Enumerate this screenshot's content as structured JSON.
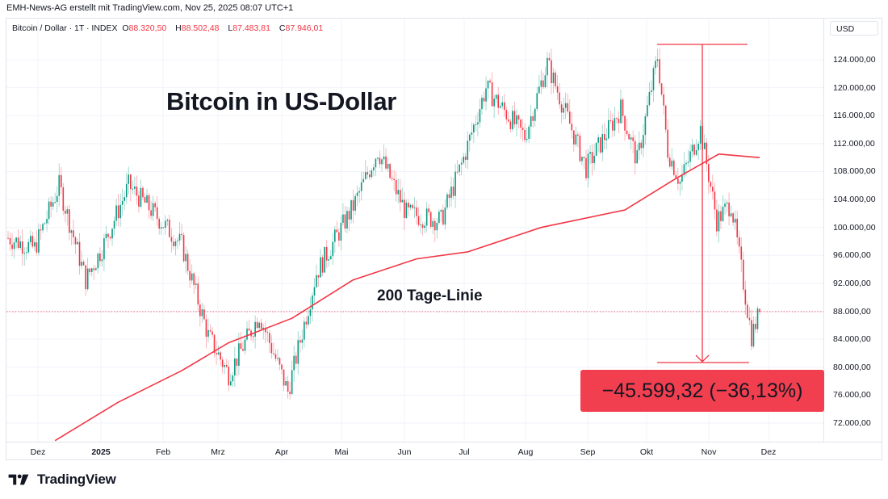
{
  "header": {
    "credit": "EMH-News-AG erstellt mit TradingView.com, Nov 25, 2025 08:07 UTC+1",
    "symbol_label": "Bitcoin / Dollar · 1T · INDEX",
    "ohlc": [
      {
        "key": "O",
        "value": "88.320,50"
      },
      {
        "key": "H",
        "value": "88.502,48"
      },
      {
        "key": "L",
        "value": "87.483,81"
      },
      {
        "key": "C",
        "value": "87.946,01"
      }
    ],
    "currency": "USD"
  },
  "annotations": {
    "title": "Bitcoin in US-Dollar",
    "ma_label": "200 Tage-Linie",
    "difference": "−45.599,32 (−36,13%)"
  },
  "branding": {
    "name": "TradingView",
    "logo_icon": "tradingview-logo-icon"
  },
  "colors": {
    "up": "#089981",
    "down": "#f23645",
    "ma": "#f23645",
    "grid": "#f0f3fa",
    "annotation": "#f23645",
    "box": "#f23f4f"
  },
  "chart_data": {
    "type": "candlestick",
    "title": "Bitcoin in US-Dollar",
    "symbol": "Bitcoin / Dollar · 1T · INDEX",
    "ylabel": "USD",
    "ylim": [
      68000,
      128000
    ],
    "y_ticks": [
      "124.000,00",
      "120.000,00",
      "116.000,00",
      "112.000,00",
      "108.000,00",
      "104.000,00",
      "100.000,00",
      "96.000,00",
      "92.000,00",
      "88.000,00",
      "84.000,00",
      "80.000,00",
      "76.000,00",
      "72.000,00"
    ],
    "x_ticks": [
      {
        "label": "Dez",
        "x": 47,
        "bold": false
      },
      {
        "label": "2025",
        "x": 125,
        "bold": true
      },
      {
        "label": "Feb",
        "x": 202,
        "bold": false
      },
      {
        "label": "Mrz",
        "x": 270,
        "bold": false
      },
      {
        "label": "Apr",
        "x": 349,
        "bold": false
      },
      {
        "label": "Mai",
        "x": 423,
        "bold": false
      },
      {
        "label": "Jun",
        "x": 501,
        "bold": false
      },
      {
        "label": "Jul",
        "x": 575,
        "bold": false
      },
      {
        "label": "Aug",
        "x": 651,
        "bold": false
      },
      {
        "label": "Sep",
        "x": 728,
        "bold": false
      },
      {
        "label": "Okt",
        "x": 801,
        "bold": false
      },
      {
        "label": "Nov",
        "x": 878,
        "bold": false
      },
      {
        "label": "Dez",
        "x": 952,
        "bold": false
      }
    ],
    "last_price": 87946.01,
    "last_ohlc": {
      "open": 88320.5,
      "high": 88502.48,
      "low": 87483.81,
      "close": 87946.01
    },
    "peak": 126200,
    "trough_low": 80600,
    "change_abs": -45599.32,
    "change_pct": -36.13,
    "close_series_approx": [
      {
        "date": "2024-11-22",
        "close": 98500
      },
      {
        "date": "2024-12-05",
        "close": 97000
      },
      {
        "date": "2024-12-17",
        "close": 106000
      },
      {
        "date": "2024-12-30",
        "close": 92500
      },
      {
        "date": "2025-01-07",
        "close": 97000
      },
      {
        "date": "2025-01-20",
        "close": 106000
      },
      {
        "date": "2025-01-31",
        "close": 102500
      },
      {
        "date": "2025-02-15",
        "close": 97500
      },
      {
        "date": "2025-02-28",
        "close": 84500
      },
      {
        "date": "2025-03-10",
        "close": 79000
      },
      {
        "date": "2025-03-25",
        "close": 87500
      },
      {
        "date": "2025-04-08",
        "close": 76500
      },
      {
        "date": "2025-04-22",
        "close": 93500
      },
      {
        "date": "2025-05-10",
        "close": 103000
      },
      {
        "date": "2025-05-22",
        "close": 111000
      },
      {
        "date": "2025-06-05",
        "close": 102000
      },
      {
        "date": "2025-06-22",
        "close": 101000
      },
      {
        "date": "2025-07-02",
        "close": 109000
      },
      {
        "date": "2025-07-14",
        "close": 120000
      },
      {
        "date": "2025-08-02",
        "close": 113000
      },
      {
        "date": "2025-08-13",
        "close": 123500
      },
      {
        "date": "2025-09-01",
        "close": 108500
      },
      {
        "date": "2025-09-18",
        "close": 117000
      },
      {
        "date": "2025-09-26",
        "close": 109500
      },
      {
        "date": "2025-10-06",
        "close": 124500
      },
      {
        "date": "2025-10-11",
        "close": 111000
      },
      {
        "date": "2025-10-17",
        "close": 106500
      },
      {
        "date": "2025-10-27",
        "close": 114000
      },
      {
        "date": "2025-11-04",
        "close": 101000
      },
      {
        "date": "2025-11-11",
        "close": 103500
      },
      {
        "date": "2025-11-21",
        "close": 84500
      },
      {
        "date": "2025-11-25",
        "close": 87946
      }
    ],
    "ma200_series_approx": [
      {
        "date": "2024-12-15",
        "value": 69500
      },
      {
        "date": "2025-01-15",
        "value": 75000
      },
      {
        "date": "2025-02-15",
        "value": 79500
      },
      {
        "date": "2025-03-10",
        "value": 83500
      },
      {
        "date": "2025-04-10",
        "value": 87000
      },
      {
        "date": "2025-05-10",
        "value": 92500
      },
      {
        "date": "2025-06-10",
        "value": 95500
      },
      {
        "date": "2025-07-05",
        "value": 96500
      },
      {
        "date": "2025-08-10",
        "value": 100000
      },
      {
        "date": "2025-09-20",
        "value": 102500
      },
      {
        "date": "2025-10-15",
        "value": 107000
      },
      {
        "date": "2025-11-05",
        "value": 110500
      },
      {
        "date": "2025-11-25",
        "value": 110000
      }
    ],
    "series_name_ma": "200 Tage-Linie",
    "grid": true,
    "legend_position": "top-left"
  }
}
